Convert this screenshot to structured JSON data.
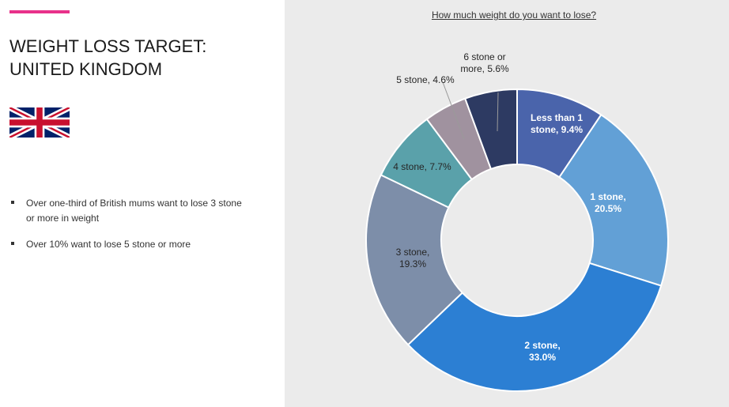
{
  "heading": {
    "line1": "WEIGHT LOSS TARGET:",
    "line2": "UNITED KINGDOM"
  },
  "flag_icon": "uk-flag-icon",
  "bullets": [
    "Over one-third of British mums want to lose 3 stone or more in weight",
    "Over 10% want to lose 5 stone or more"
  ],
  "colors": {
    "accent": "#e8318a",
    "panel_bg": "#ebebeb"
  },
  "chart_data": {
    "type": "pie",
    "donut": true,
    "title": "How much weight do you want to lose?",
    "categories": [
      "Less than 1 stone",
      "1 stone",
      "2 stone",
      "3 stone",
      "4 stone",
      "5 stone",
      "6 stone or more"
    ],
    "values": [
      9.4,
      20.5,
      33.0,
      19.3,
      7.7,
      4.6,
      5.6
    ],
    "labels": [
      [
        "Less than 1",
        "stone, 9.4%"
      ],
      [
        "1 stone,",
        "20.5%"
      ],
      [
        "2 stone,",
        "33.0%"
      ],
      [
        "3 stone,",
        "19.3%"
      ],
      [
        "4 stone, 7.7%"
      ],
      [
        "5 stone, 4.6%"
      ],
      [
        "6 stone or",
        "more, 5.6%"
      ]
    ],
    "colors": [
      "#4a64ab",
      "#62a0d6",
      "#2c7fd3",
      "#7d8ea9",
      "#5aa1aa",
      "#a0929f",
      "#2d3a62"
    ],
    "label_colors": [
      "#ffffff",
      "#ffffff",
      "#ffffff",
      "#262626",
      "#262626",
      "#262626",
      "#262626"
    ],
    "legend": "none"
  }
}
